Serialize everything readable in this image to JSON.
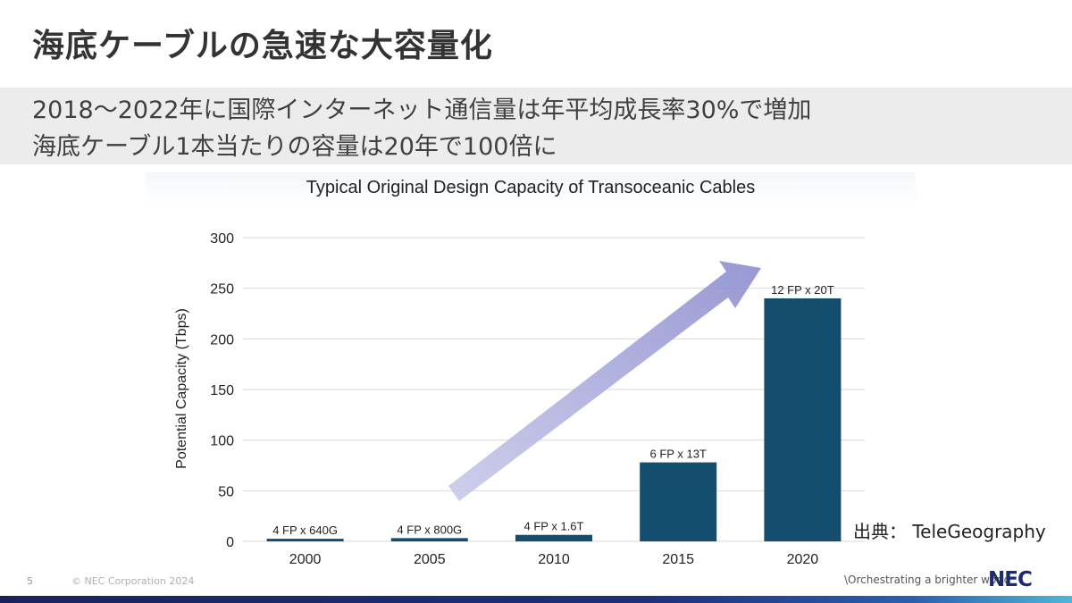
{
  "slide": {
    "title": "海底ケーブルの急速な大容量化",
    "subtitle_line1": "2018～2022年に国際インターネット通信量は年平均成長率30%で増加",
    "subtitle_line2": "海底ケーブル1本当たりの容量は20年で100倍に",
    "source": "出典： TeleGeography",
    "page_number": "5",
    "copyright": "© NEC Corporation 2024",
    "tagline": "\\Orchestrating a brighter world",
    "logo": "NEC"
  },
  "colors": {
    "bar": "#154d6e",
    "arrow": "#9b9bd6",
    "grid": "#d9d9d9"
  },
  "chart_data": {
    "type": "bar",
    "title": "Typical Original Design Capacity of Transoceanic Cables",
    "xlabel": "",
    "ylabel": "Potential Capacity (Tbps)",
    "ylim": [
      0,
      300
    ],
    "yticks": [
      "0",
      "50",
      "100",
      "150",
      "200",
      "250",
      "300"
    ],
    "categories": [
      "2000",
      "2005",
      "2010",
      "2015",
      "2020"
    ],
    "values": [
      2.56,
      3.2,
      6.4,
      78,
      240
    ],
    "data_labels": [
      "4 FP x 640G",
      "4 FP x 800G",
      "4 FP x 1.6T",
      "6 FP x 13T",
      "12 FP x 20T"
    ],
    "grid": true,
    "annotation": "upward trend arrow"
  }
}
